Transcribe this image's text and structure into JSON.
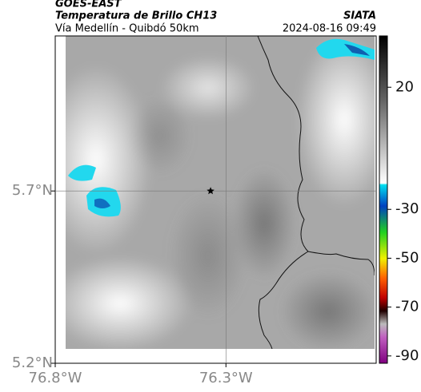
{
  "header": {
    "title": "GOES-EAST",
    "subtitle": "Temperatura de Brillo CH13",
    "source": "SIATA",
    "route": "Vía Medellín - Quibdó 50km",
    "datetime": "2024-08-16 09:49"
  },
  "map": {
    "xlim": [
      -76.8,
      -75.86
    ],
    "ylim": [
      5.2,
      6.15
    ],
    "xticks": [
      {
        "value": -76.8,
        "label": "76.8°W"
      },
      {
        "value": -76.3,
        "label": "76.3°W"
      }
    ],
    "yticks": [
      {
        "value": 5.2,
        "label": "5.2°N"
      },
      {
        "value": 5.7,
        "label": "5.7°N"
      }
    ],
    "grid": true,
    "marker": {
      "lon": -76.345,
      "lat": 5.7
    }
  },
  "colorbar": {
    "clim": [
      -93,
      41
    ],
    "ticks": [
      20,
      -30,
      -50,
      -70,
      -90
    ]
  }
}
